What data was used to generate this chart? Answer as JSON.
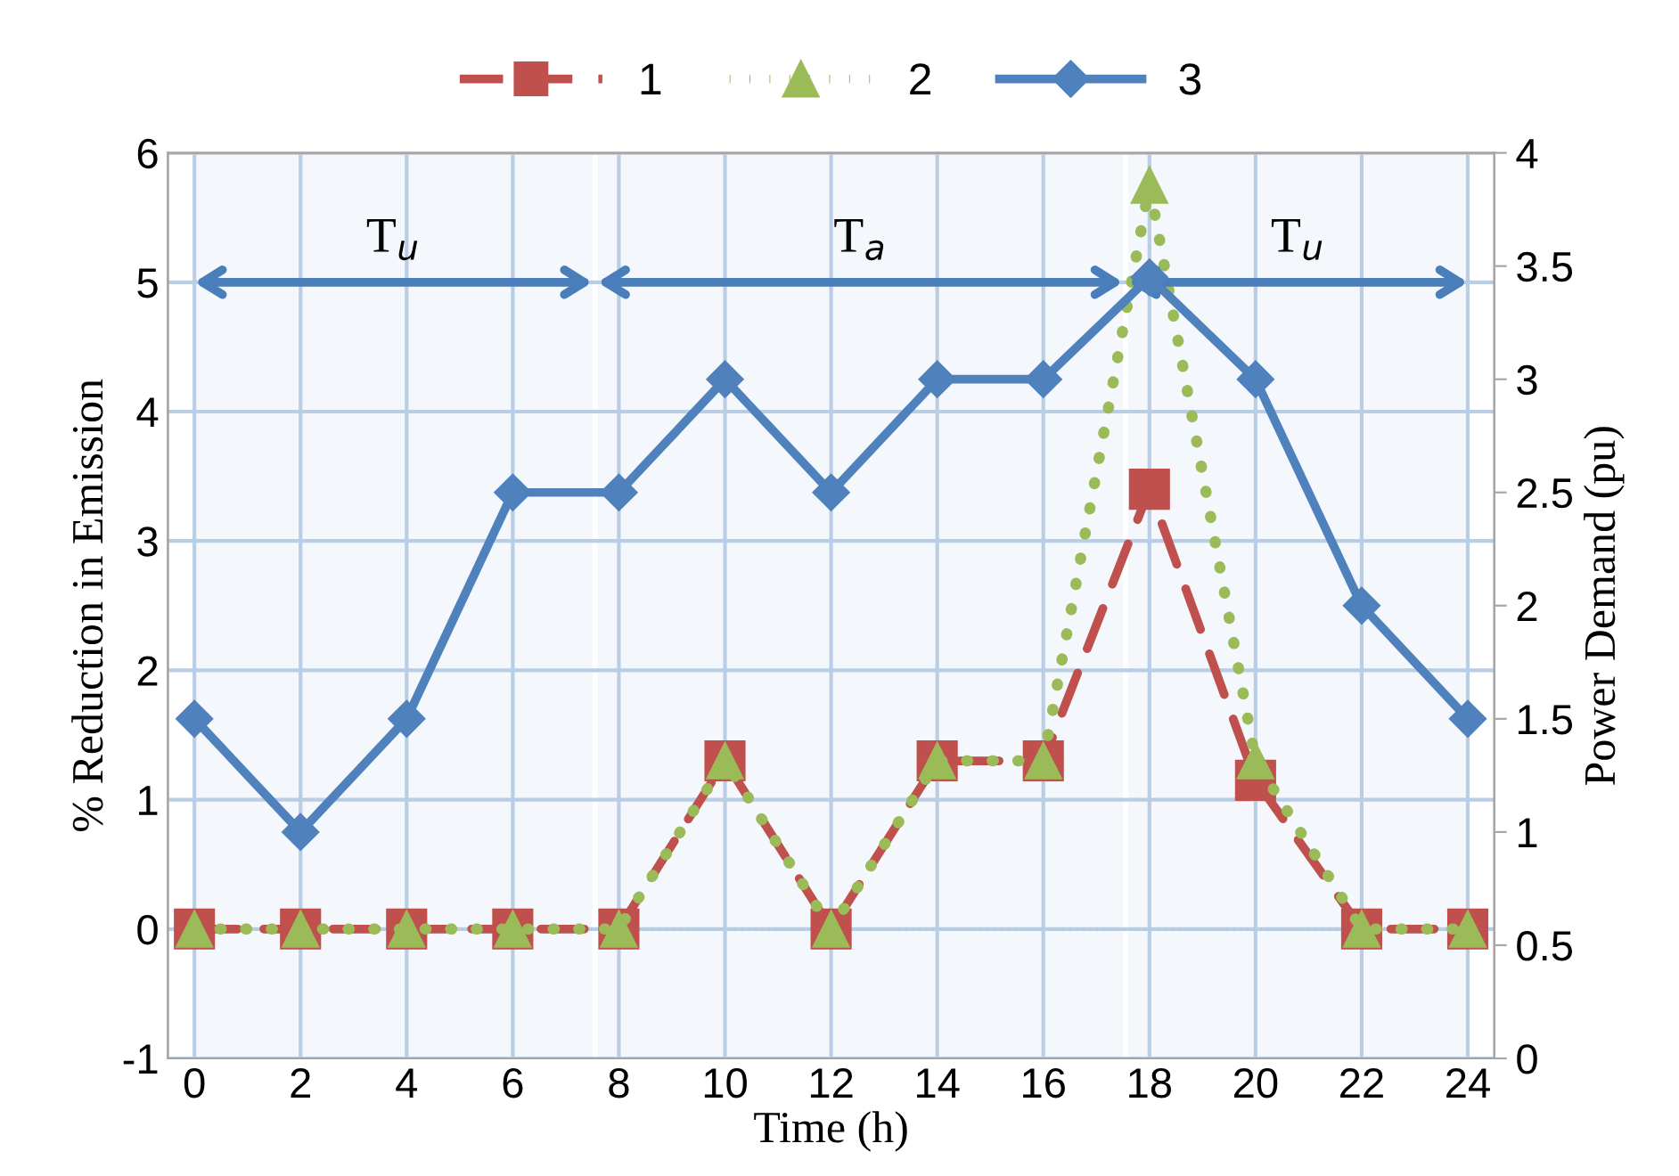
{
  "chart_data": {
    "type": "line",
    "x": [
      0,
      2,
      4,
      6,
      8,
      10,
      12,
      14,
      16,
      18,
      20,
      22,
      24
    ],
    "series": [
      {
        "name": "1",
        "color": "#c0504d",
        "marker": "square",
        "line_style": "dashed",
        "values": [
          0,
          0,
          0,
          0,
          0,
          1.3,
          0,
          1.3,
          1.3,
          3.4,
          1.15,
          0,
          0
        ]
      },
      {
        "name": "2",
        "color": "#9bbb59",
        "marker": "triangle",
        "line_style": "dotted",
        "values": [
          0,
          0,
          0,
          0,
          0,
          1.3,
          0,
          1.3,
          1.3,
          5.75,
          1.3,
          0,
          0
        ]
      },
      {
        "name": "3",
        "color": "#4f81bd",
        "marker": "diamond",
        "line_style": "solid",
        "axis": "y2",
        "values": [
          1.5,
          1,
          1.5,
          2.5,
          2.5,
          3,
          2.5,
          3,
          3,
          3.45,
          3,
          2,
          1.5
        ]
      }
    ],
    "xlabel": "Time (h)",
    "ylabel": "% Reduction in Emission",
    "y2label": "Power Demand (pu)",
    "xlim": [
      -0.5,
      24.5
    ],
    "xticks": [
      0,
      2,
      4,
      6,
      8,
      10,
      12,
      14,
      16,
      18,
      20,
      22,
      24
    ],
    "ylim": [
      -1,
      6
    ],
    "yticks": [
      -1,
      0,
      1,
      2,
      3,
      4,
      5,
      6
    ],
    "y2lim": [
      0,
      4
    ],
    "y2ticks": [
      0,
      0.5,
      1,
      1.5,
      2,
      2.5,
      3,
      3.5,
      4
    ],
    "ref_lines": [
      {
        "axis": "y",
        "value": 0,
        "color": "#8eb4e3",
        "line_style": "dotted"
      }
    ],
    "bands": [
      {
        "axis": "x",
        "from": 0,
        "to": 7.5,
        "label": "T$_{u}$",
        "color": "#4a7ebb"
      },
      {
        "axis": "x",
        "from": 7.6,
        "to": 17.5,
        "label": "T$_{a}$",
        "color": "#4a7ebb"
      },
      {
        "axis": "x",
        "from": 17.6,
        "to": 24,
        "label": "T$_{u}$",
        "color": "#4a7ebb"
      }
    ],
    "grid": true,
    "legend": "top"
  }
}
